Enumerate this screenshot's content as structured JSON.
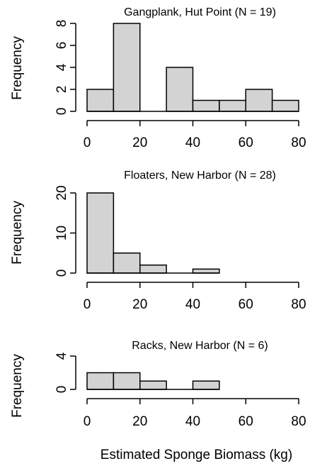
{
  "chart_data": [
    {
      "type": "bar",
      "title": "Gangplank, Hut Point (N = 19)",
      "ylabel": "Frequency",
      "xlabel": "",
      "bin_edges": [
        0,
        10,
        20,
        30,
        40,
        50,
        60,
        70,
        80
      ],
      "values": [
        2,
        8,
        0,
        4,
        1,
        1,
        2,
        1
      ],
      "xticks": [
        "0",
        "20",
        "40",
        "60",
        "80"
      ],
      "yticks": [
        "0",
        "2",
        "4",
        "6",
        "8"
      ],
      "xlim": [
        0,
        80
      ],
      "ylim": [
        0,
        8
      ],
      "bar_color": "#d3d3d3"
    },
    {
      "type": "bar",
      "title": "Floaters, New Harbor (N = 28)",
      "ylabel": "Frequency",
      "xlabel": "",
      "bin_edges": [
        0,
        10,
        20,
        30,
        40,
        50
      ],
      "values": [
        20,
        5,
        2,
        0,
        1
      ],
      "xticks": [
        "0",
        "20",
        "40",
        "60",
        "80"
      ],
      "yticks": [
        "0",
        "10",
        "20"
      ],
      "xlim": [
        0,
        80
      ],
      "ylim": [
        0,
        20
      ],
      "bar_color": "#d3d3d3"
    },
    {
      "type": "bar",
      "title": "Racks, New Harbor (N = 6)",
      "ylabel": "Frequency",
      "xlabel": "Estimated Sponge Biomass (kg)",
      "bin_edges": [
        0,
        10,
        20,
        30,
        40,
        50
      ],
      "values": [
        2,
        2,
        1,
        0,
        1
      ],
      "xticks": [
        "0",
        "20",
        "40",
        "60",
        "80"
      ],
      "yticks": [
        "0",
        "4"
      ],
      "xlim": [
        0,
        80
      ],
      "ylim": [
        0,
        4
      ],
      "bar_color": "#d3d3d3"
    }
  ]
}
